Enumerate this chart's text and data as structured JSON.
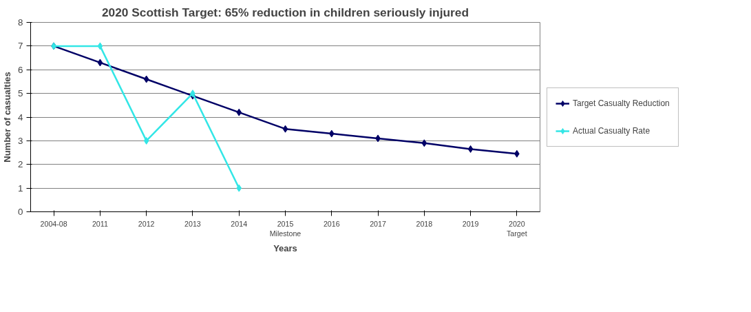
{
  "chart_data": {
    "type": "line",
    "title": "2020 Scottish Target: 65% reduction in children seriously injured",
    "xlabel": "Years",
    "ylabel": "Number of casualties",
    "categories": [
      "2004-08",
      "2011",
      "2012",
      "2013",
      "2014",
      "2015\nMilestone",
      "2016",
      "2017",
      "2018",
      "2019",
      "2020\nTarget"
    ],
    "series": [
      {
        "name": "Target Casualty Reduction",
        "color": "#000066",
        "values": [
          7,
          6.3,
          5.6,
          4.9,
          4.2,
          3.5,
          3.3,
          3.1,
          2.9,
          2.65,
          2.45
        ]
      },
      {
        "name": "Actual Casualty Rate",
        "color": "#33e6e6",
        "values": [
          7,
          7,
          3,
          5,
          1,
          null,
          null,
          null,
          null,
          null,
          null
        ]
      }
    ],
    "ylim": [
      0,
      8
    ],
    "yticks": [
      0,
      1,
      2,
      3,
      4,
      5,
      6,
      7,
      8
    ],
    "grid": "y",
    "legend": "right",
    "marker": "diamond",
    "line_style": "solid"
  }
}
